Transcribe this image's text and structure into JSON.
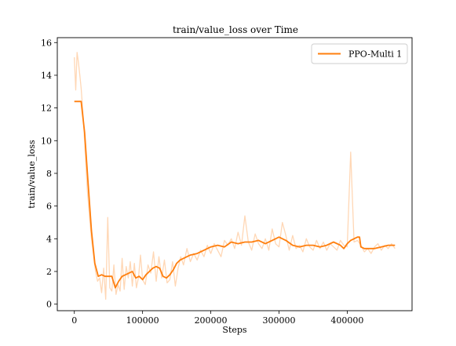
{
  "chart_data": {
    "type": "line",
    "title": "train/value_loss over Time",
    "xlabel": "Steps",
    "ylabel": "train/value_loss",
    "xlim": [
      -25000,
      495000
    ],
    "ylim": [
      -0.4,
      16.3
    ],
    "xticks": [
      0,
      100000,
      200000,
      300000,
      400000
    ],
    "xtick_labels": [
      "0",
      "100000",
      "200000",
      "300000",
      "400000"
    ],
    "yticks": [
      0,
      2,
      4,
      6,
      8,
      10,
      12,
      14,
      16
    ],
    "ytick_labels": [
      "0",
      "2",
      "4",
      "6",
      "8",
      "10",
      "12",
      "14",
      "16"
    ],
    "grid": false,
    "legend": {
      "position": "top-right",
      "entries": [
        "PPO-Multi 1"
      ]
    },
    "series": [
      {
        "name": "PPO-Multi 1",
        "color": "#ff7f0e",
        "raw_color": "#ffd7b5",
        "raw": {
          "x": [
            0,
            2000,
            4000,
            6000,
            8000,
            10000,
            13000,
            16000,
            19000,
            22000,
            25000,
            28000,
            31000,
            34000,
            37000,
            40000,
            43000,
            46000,
            49000,
            52000,
            55000,
            58000,
            61000,
            64000,
            67000,
            70000,
            73000,
            76000,
            79000,
            82000,
            85000,
            88000,
            91000,
            94000,
            97000,
            100000,
            104000,
            108000,
            112000,
            116000,
            120000,
            124000,
            128000,
            132000,
            136000,
            140000,
            144000,
            148000,
            152000,
            156000,
            160000,
            165000,
            170000,
            175000,
            180000,
            185000,
            190000,
            195000,
            200000,
            205000,
            210000,
            215000,
            220000,
            225000,
            230000,
            235000,
            240000,
            245000,
            250000,
            255000,
            260000,
            265000,
            270000,
            275000,
            280000,
            285000,
            290000,
            295000,
            300000,
            305000,
            310000,
            315000,
            320000,
            325000,
            330000,
            335000,
            340000,
            345000,
            350000,
            355000,
            360000,
            365000,
            370000,
            375000,
            380000,
            385000,
            390000,
            395000,
            400000,
            405000,
            410000,
            415000,
            420000,
            425000,
            430000,
            435000,
            440000,
            445000,
            450000,
            455000,
            460000,
            465000,
            470000
          ],
          "y": [
            15.1,
            13.1,
            15.4,
            14.8,
            14.0,
            13.2,
            11.5,
            9.2,
            7.0,
            5.4,
            4.0,
            3.0,
            2.0,
            1.4,
            1.6,
            0.7,
            2.2,
            0.3,
            5.3,
            1.0,
            0.8,
            2.4,
            0.6,
            1.2,
            0.8,
            2.8,
            0.9,
            2.3,
            1.6,
            2.6,
            1.1,
            2.5,
            1.0,
            1.6,
            3.0,
            1.5,
            1.2,
            2.4,
            1.9,
            3.2,
            1.4,
            2.9,
            1.6,
            2.7,
            1.3,
            1.5,
            2.6,
            1.1,
            2.2,
            2.9,
            2.4,
            3.4,
            2.6,
            3.1,
            2.7,
            3.3,
            2.9,
            3.6,
            3.1,
            3.7,
            3.3,
            2.9,
            3.9,
            3.6,
            4.0,
            3.4,
            4.4,
            3.6,
            5.4,
            3.8,
            3.3,
            4.3,
            3.7,
            3.4,
            4.0,
            3.3,
            4.6,
            3.7,
            3.5,
            5.0,
            4.2,
            3.3,
            4.2,
            3.4,
            3.6,
            3.2,
            4.0,
            3.5,
            3.3,
            3.9,
            3.4,
            3.8,
            3.3,
            3.7,
            3.5,
            3.3,
            3.9,
            3.6,
            3.5,
            9.3,
            3.8,
            3.9,
            3.6,
            3.2,
            3.4,
            3.1,
            3.5,
            3.7,
            3.3,
            3.6,
            3.4,
            3.7,
            3.4
          ]
        },
        "smoothed": {
          "x": [
            0,
            5000,
            10000,
            15000,
            20000,
            25000,
            30000,
            35000,
            40000,
            45000,
            50000,
            55000,
            60000,
            65000,
            70000,
            75000,
            80000,
            85000,
            90000,
            95000,
            100000,
            105000,
            110000,
            115000,
            120000,
            125000,
            130000,
            135000,
            140000,
            145000,
            150000,
            155000,
            160000,
            170000,
            180000,
            190000,
            200000,
            210000,
            220000,
            230000,
            240000,
            250000,
            260000,
            270000,
            280000,
            290000,
            300000,
            305000,
            310000,
            320000,
            330000,
            340000,
            350000,
            360000,
            370000,
            380000,
            390000,
            395000,
            400000,
            405000,
            410000,
            415000,
            418000,
            420000,
            425000,
            430000,
            440000,
            450000,
            460000,
            470000
          ],
          "y": [
            12.4,
            12.4,
            12.4,
            10.5,
            7.5,
            4.5,
            2.5,
            1.7,
            1.8,
            1.7,
            1.7,
            1.7,
            1.0,
            1.4,
            1.7,
            1.8,
            1.9,
            2.0,
            1.6,
            1.7,
            1.5,
            1.8,
            2.0,
            2.2,
            2.3,
            2.2,
            1.7,
            1.6,
            1.8,
            2.1,
            2.5,
            2.7,
            2.8,
            3.0,
            3.1,
            3.3,
            3.5,
            3.6,
            3.5,
            3.8,
            3.7,
            3.8,
            3.8,
            3.9,
            3.7,
            3.9,
            4.1,
            4.0,
            3.9,
            3.6,
            3.5,
            3.6,
            3.6,
            3.5,
            3.6,
            3.8,
            3.6,
            3.4,
            3.7,
            3.9,
            4.0,
            4.1,
            4.1,
            3.5,
            3.4,
            3.4,
            3.4,
            3.5,
            3.6,
            3.6
          ]
        }
      }
    ]
  }
}
